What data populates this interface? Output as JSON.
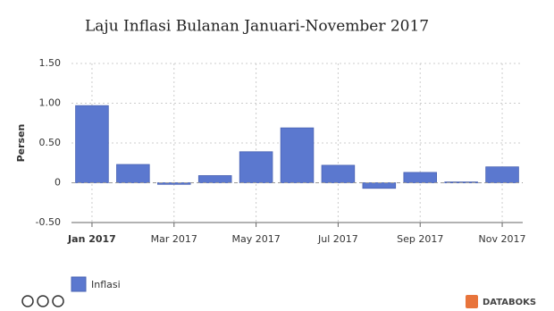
{
  "chart_data": {
    "type": "bar",
    "title": "Laju Inflasi Bulanan Januari-November 2017",
    "y_label": "Persen",
    "categories": [
      "Jan 2017",
      null,
      "Mar 2017",
      null,
      "May 2017",
      null,
      "Jul 2017",
      null,
      "Sep 2017",
      null,
      "Nov 2017"
    ],
    "series": [
      {
        "name": "Inflasi",
        "color": "#5b78cf",
        "values": [
          0.97,
          0.23,
          -0.02,
          0.09,
          0.39,
          0.69,
          0.22,
          -0.07,
          0.13,
          0.01,
          0.2
        ]
      }
    ],
    "ylim": [
      -0.5,
      1.5
    ],
    "yticks": [
      {
        "value": -0.5,
        "label": "-0.50"
      },
      0,
      {
        "value": 0.5,
        "label": "0.50"
      },
      {
        "value": 1,
        "label": "1.00"
      },
      {
        "value": 1.5,
        "label": "1.50"
      }
    ],
    "grid": true,
    "legend": "bottom-left",
    "brand": "DATABOKS"
  }
}
